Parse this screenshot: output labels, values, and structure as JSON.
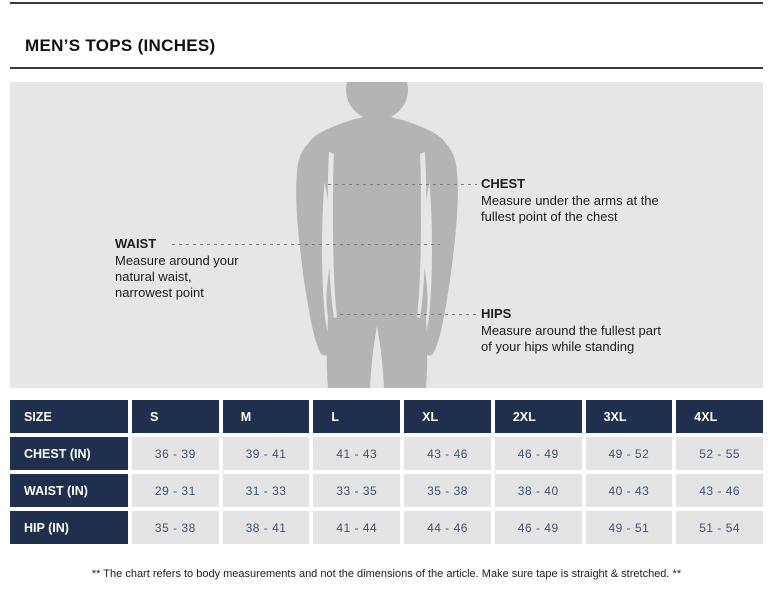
{
  "page": {
    "title": "MEN’S TOPS (INCHES)",
    "footnote": "**  The chart refers to body measurements and not the dimensions of the article. Make sure tape is straight & stretched. **"
  },
  "colors": {
    "header_navy": "#1f2f4e",
    "data_cell_gray": "#e4e4e5",
    "data_text": "#44536a",
    "panel_background": "#e6e6e6",
    "silhouette_gray": "#b4b4b4",
    "dashed_line_gray": "#7d7d7d"
  },
  "diagram": {
    "figure": "male-back-silhouette",
    "annotations": [
      {
        "id": "chest",
        "title": "CHEST",
        "description": "Measure under the arms at the fullest point of the chest"
      },
      {
        "id": "waist",
        "title": "WAIST",
        "description": "Measure around your natural waist, narrowest point"
      },
      {
        "id": "hips",
        "title": "HIPS",
        "description": "Measure around the fullest part of your hips while standing"
      }
    ]
  },
  "table": {
    "headers": [
      "SIZE",
      "S",
      "M",
      "L",
      "XL",
      "2XL",
      "3XL",
      "4XL"
    ],
    "rows": [
      {
        "label": "CHEST (IN)",
        "values": [
          "36 - 39",
          "39 - 41",
          "41 - 43",
          "43 - 46",
          "46 - 49",
          "49 - 52",
          "52 - 55"
        ]
      },
      {
        "label": "WAIST (IN)",
        "values": [
          "29 - 31",
          "31 - 33",
          "33 - 35",
          "35 - 38",
          "38 - 40",
          "40 - 43",
          "43 - 46"
        ]
      },
      {
        "label": "HIP (IN)",
        "values": [
          "35 - 38",
          "38 - 41",
          "41 - 44",
          "44 - 46",
          "46 - 49",
          "49 - 51",
          "51 - 54"
        ]
      }
    ]
  },
  "chart_data": {
    "type": "table",
    "title": "MEN’S TOPS (INCHES)",
    "columns": [
      "SIZE",
      "S",
      "M",
      "L",
      "XL",
      "2XL",
      "3XL",
      "4XL"
    ],
    "rows": [
      [
        "CHEST (IN)",
        "36 - 39",
        "39 - 41",
        "41 - 43",
        "43 - 46",
        "46 - 49",
        "49 - 52",
        "52 - 55"
      ],
      [
        "WAIST (IN)",
        "29 - 31",
        "31 - 33",
        "33 - 35",
        "35 - 38",
        "38 - 40",
        "40 - 43",
        "43 - 46"
      ],
      [
        "HIP (IN)",
        "35 - 38",
        "38 - 41",
        "41 - 44",
        "44 - 46",
        "46 - 49",
        "49 - 51",
        "51 - 54"
      ]
    ]
  }
}
